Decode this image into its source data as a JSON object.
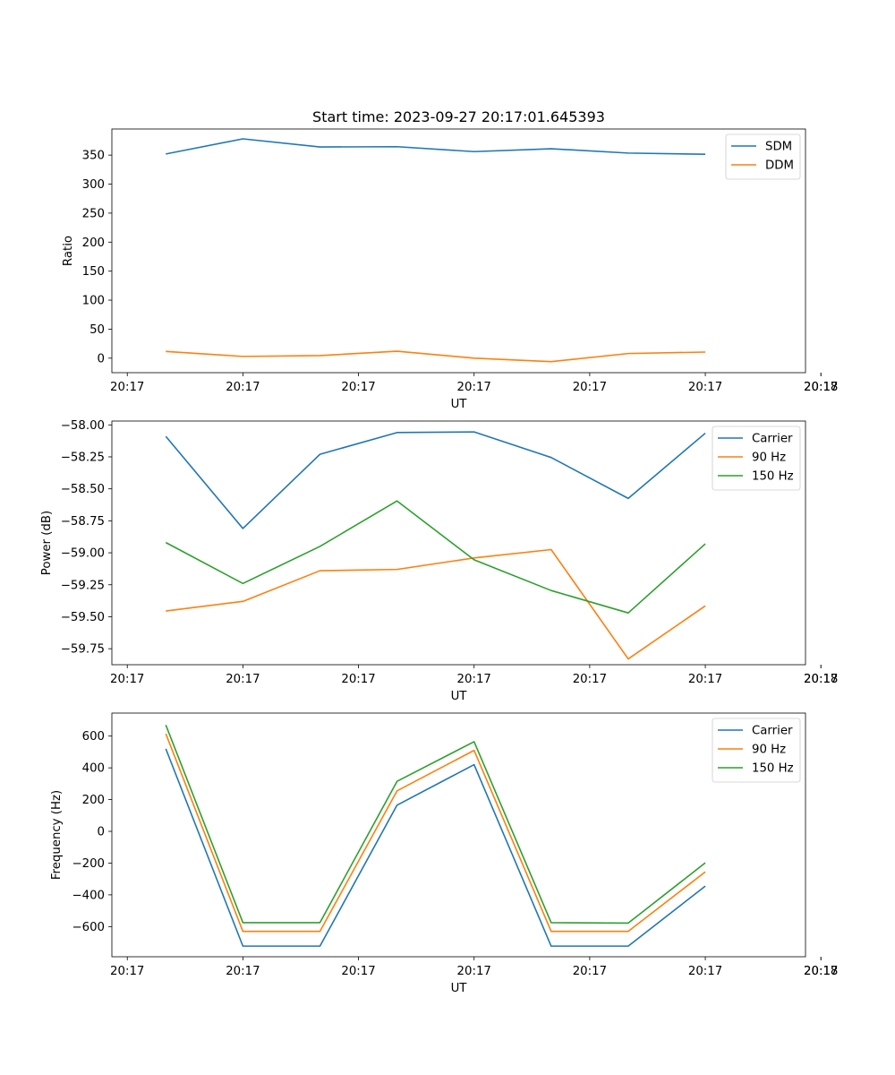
{
  "colors": {
    "c0": "#1f77b4",
    "c1": "#ff7f0e",
    "c2": "#2ca02c"
  },
  "chart_data": [
    {
      "type": "line",
      "title": "Start time: 2023-09-27 20:17:01.645393",
      "xlabel": "UT",
      "ylabel": "Ratio",
      "xlim": [
        -0.2,
        8.8
      ],
      "x": [
        0.5,
        1.5,
        2.5,
        3.5,
        4.5,
        5.5,
        6.5,
        7.5
      ],
      "ylim": [
        -25,
        395
      ],
      "xticks": [
        0,
        1.5,
        3,
        4.5,
        6,
        7.5,
        9
      ],
      "xtick_labels": [
        "20:17",
        "20:17",
        "20:17",
        "20:17",
        "20:17",
        "20:17",
        "20:17"
      ],
      "x_extra_tick": {
        "value": 9,
        "label": "20:18"
      },
      "yticks": [
        0,
        50,
        100,
        150,
        200,
        250,
        300,
        350
      ],
      "ytick_labels": [
        "0",
        "50",
        "100",
        "150",
        "200",
        "250",
        "300",
        "350"
      ],
      "legend": "top-right",
      "series": [
        {
          "name": "SDM",
          "color": "c0",
          "values": [
            352,
            378,
            364,
            364.5,
            356,
            361,
            353.5,
            351.5
          ]
        },
        {
          "name": "DDM",
          "color": "c1",
          "values": [
            11.5,
            3,
            4.5,
            12,
            0,
            -6,
            8,
            10.5
          ]
        }
      ]
    },
    {
      "type": "line",
      "title": "",
      "xlabel": "UT",
      "ylabel": "Power (dB)",
      "xlim": [
        -0.2,
        8.8
      ],
      "x": [
        0.5,
        1.5,
        2.5,
        3.5,
        4.5,
        5.5,
        6.5,
        7.5
      ],
      "ylim": [
        -59.875,
        -57.97
      ],
      "xticks": [
        0,
        1.5,
        3,
        4.5,
        6,
        7.5,
        9
      ],
      "xtick_labels": [
        "20:17",
        "20:17",
        "20:17",
        "20:17",
        "20:17",
        "20:17",
        "20:17"
      ],
      "x_extra_tick": {
        "value": 9,
        "label": "20:18"
      },
      "yticks": [
        -59.75,
        -59.5,
        -59.25,
        -59.0,
        -58.75,
        -58.5,
        -58.25,
        -58.0
      ],
      "ytick_labels": [
        "−59.75",
        "−59.50",
        "−59.25",
        "−59.00",
        "−58.75",
        "−58.50",
        "−58.25",
        "−58.00"
      ],
      "legend": "top-right",
      "series": [
        {
          "name": "Carrier",
          "color": "c0",
          "values": [
            -58.09,
            -58.81,
            -58.23,
            -58.06,
            -58.055,
            -58.255,
            -58.575,
            -58.065
          ]
        },
        {
          "name": "90 Hz",
          "color": "c1",
          "values": [
            -59.455,
            -59.38,
            -59.14,
            -59.13,
            -59.04,
            -58.975,
            -59.83,
            -59.415
          ]
        },
        {
          "name": "150 Hz",
          "color": "c2",
          "values": [
            -58.92,
            -59.24,
            -58.95,
            -58.595,
            -59.055,
            -59.295,
            -59.47,
            -58.93
          ]
        }
      ]
    },
    {
      "type": "line",
      "title": "",
      "xlabel": "UT",
      "ylabel": "Frequency (Hz)",
      "xlim": [
        -0.2,
        8.8
      ],
      "x": [
        0.5,
        1.5,
        2.5,
        3.5,
        4.5,
        5.5,
        6.5,
        7.5
      ],
      "ylim": [
        -790,
        745
      ],
      "xticks": [
        0,
        1.5,
        3,
        4.5,
        6,
        7.5,
        9
      ],
      "xtick_labels": [
        "20:17",
        "20:17",
        "20:17",
        "20:17",
        "20:17",
        "20:17",
        "20:17"
      ],
      "x_extra_tick": {
        "value": 9,
        "label": "20:18"
      },
      "yticks": [
        -600,
        -400,
        -200,
        0,
        200,
        400,
        600
      ],
      "ytick_labels": [
        "−600",
        "−400",
        "−200",
        "0",
        "200",
        "400",
        "600"
      ],
      "legend": "top-right",
      "series": [
        {
          "name": "Carrier",
          "color": "c0",
          "values": [
            520,
            -723,
            -723,
            165,
            420,
            -723,
            -723,
            -345
          ]
        },
        {
          "name": "90 Hz",
          "color": "c1",
          "values": [
            615,
            -630,
            -630,
            255,
            510,
            -630,
            -630,
            -255
          ]
        },
        {
          "name": "150 Hz",
          "color": "c2",
          "values": [
            670,
            -575,
            -575,
            315,
            565,
            -575,
            -578,
            -198
          ]
        }
      ]
    }
  ]
}
